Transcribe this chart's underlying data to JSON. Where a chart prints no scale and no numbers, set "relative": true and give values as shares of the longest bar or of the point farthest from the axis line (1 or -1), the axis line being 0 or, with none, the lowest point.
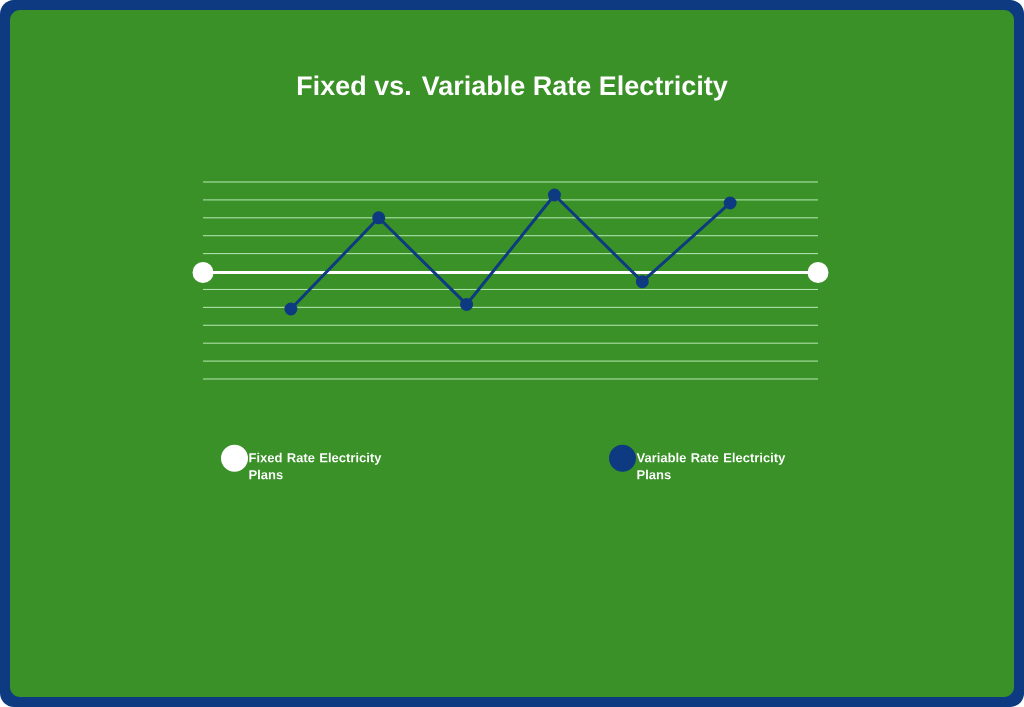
{
  "chart_data": {
    "type": "line",
    "title": "Fixed vs. Variable Rate Electricity",
    "relative": true,
    "categories": [
      null,
      null,
      null,
      null,
      null,
      null,
      null,
      null
    ],
    "tick_labels": false,
    "grid": "y",
    "legend": "bottom",
    "marker": "circle",
    "line_style": "solid",
    "series": [
      {
        "name": "Fixed Rate Electricity Plans",
        "color": "#ffffff",
        "values": [
          0.32,
          null,
          null,
          null,
          null,
          null,
          null,
          0.32
        ]
      },
      {
        "name": "Variable Rate Electricity Plans",
        "color": "#0d3a80",
        "values": [
          null,
          0,
          0.8,
          0.04,
          1.0,
          0.24,
          0.93,
          null
        ]
      }
    ]
  }
}
